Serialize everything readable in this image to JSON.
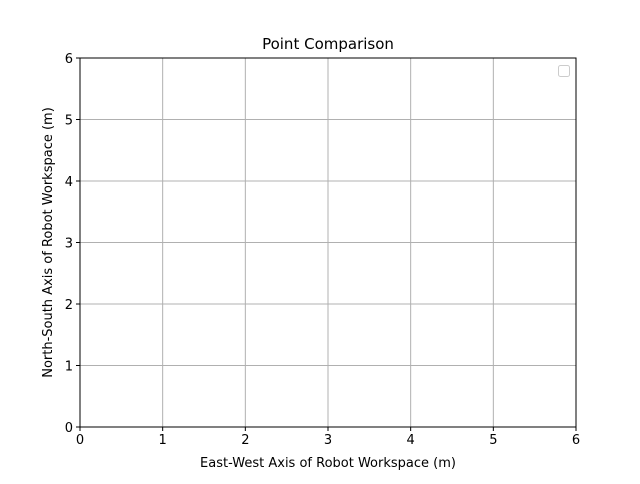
{
  "chart_data": {
    "type": "scatter",
    "title": "Point Comparison",
    "xlabel": "East-West Axis of Robot Workspace (m)",
    "ylabel": "North-South Axis of Robot Workspace (m)",
    "xlim": [
      0,
      6
    ],
    "ylim": [
      0,
      6
    ],
    "xticks": [
      "0",
      "1",
      "2",
      "3",
      "4",
      "5",
      "6"
    ],
    "yticks": [
      "0",
      "1",
      "2",
      "3",
      "4",
      "5",
      "6"
    ],
    "grid": true,
    "legend": {
      "placement": "top-right",
      "entries": []
    },
    "series": [],
    "colors": {
      "grid": "#b0b0b0",
      "axes": "#000000",
      "background": "#ffffff"
    }
  }
}
